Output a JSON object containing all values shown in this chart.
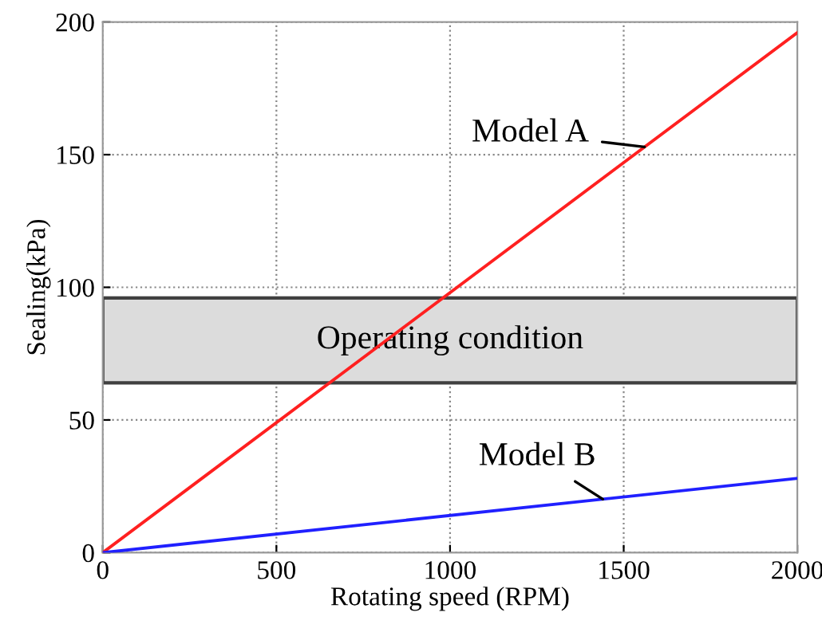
{
  "chart_data": {
    "type": "line",
    "xlabel": "Rotating speed (RPM)",
    "ylabel": "Sealing(kPa)",
    "x": [
      0,
      2000
    ],
    "series": [
      {
        "name": "Model A",
        "color": "#ff2020",
        "values": [
          0,
          196
        ]
      },
      {
        "name": "Model B",
        "color": "#2020ff",
        "values": [
          0,
          28
        ]
      }
    ],
    "xlim": [
      0,
      2000
    ],
    "ylim": [
      0,
      200
    ],
    "xticks": [
      0,
      500,
      1000,
      1500,
      2000
    ],
    "yticks": [
      0,
      50,
      100,
      150,
      200
    ],
    "bands": [
      {
        "axis": "y",
        "from": 64,
        "to": 96,
        "label": "Operating condition",
        "color": "#dcdcdc"
      }
    ],
    "grid": true,
    "line_style": "solid",
    "marker": "none"
  }
}
